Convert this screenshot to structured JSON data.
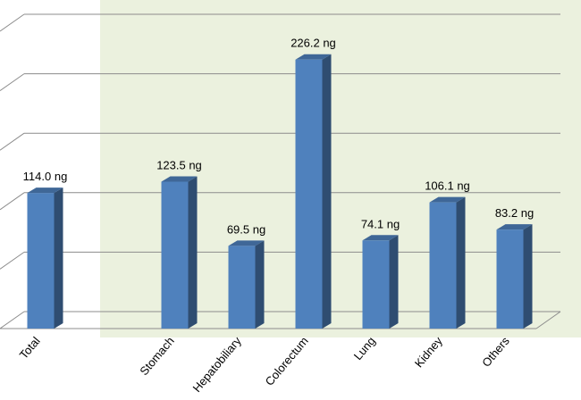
{
  "chart_data": {
    "type": "bar",
    "categories": [
      "Total",
      null,
      "Stomach",
      "Hepatobiliary",
      "Colorectum",
      "Lung",
      "Kidney",
      "Others"
    ],
    "values": [
      114.0,
      null,
      123.5,
      69.5,
      226.2,
      74.1,
      106.1,
      83.2
    ],
    "value_labels": [
      "114.0 ng",
      null,
      "123.5 ng",
      "69.5 ng",
      "226.2 ng",
      "74.1 ng",
      "106.1 ng",
      "83.2 ng"
    ],
    "color": "#4f81bd",
    "ylim": [
      0,
      250
    ],
    "yticks": [
      0,
      50,
      100,
      150,
      200,
      250
    ],
    "grid": true
  }
}
